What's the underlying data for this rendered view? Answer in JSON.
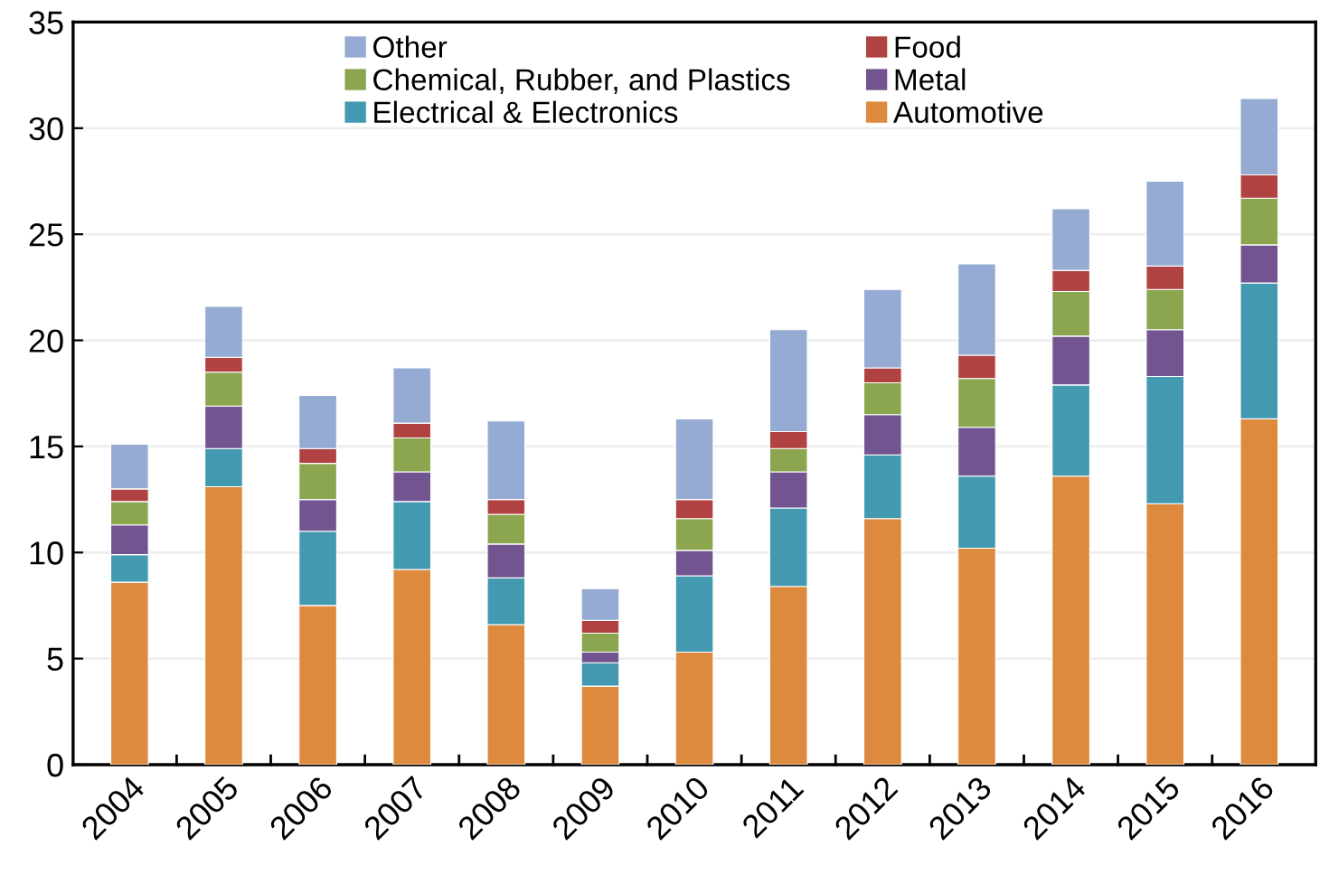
{
  "chart_data": {
    "type": "bar",
    "stacked": true,
    "categories": [
      "2004",
      "2005",
      "2006",
      "2007",
      "2008",
      "2009",
      "2010",
      "2011",
      "2012",
      "2013",
      "2014",
      "2015",
      "2016"
    ],
    "series": [
      {
        "name": "Automotive",
        "color": "#dd8a3e",
        "values": [
          8.6,
          13.1,
          7.5,
          9.2,
          6.6,
          3.7,
          5.3,
          8.4,
          11.6,
          10.2,
          13.6,
          12.3,
          16.3
        ]
      },
      {
        "name": "Electrical & Electronics",
        "color": "#4299b0",
        "values": [
          1.3,
          1.8,
          3.5,
          3.2,
          2.2,
          1.1,
          3.6,
          3.7,
          3.0,
          3.4,
          4.3,
          6.0,
          6.4
        ]
      },
      {
        "name": "Metal",
        "color": "#725590",
        "values": [
          1.4,
          2.0,
          1.5,
          1.4,
          1.6,
          0.5,
          1.2,
          1.7,
          1.9,
          2.3,
          2.3,
          2.2,
          1.8
        ]
      },
      {
        "name": "Chemical, Rubber, and Plastics",
        "color": "#8ba64f",
        "values": [
          1.1,
          1.6,
          1.7,
          1.6,
          1.4,
          0.9,
          1.5,
          1.1,
          1.5,
          2.3,
          2.1,
          1.9,
          2.2
        ]
      },
      {
        "name": "Food",
        "color": "#b04341",
        "values": [
          0.6,
          0.7,
          0.7,
          0.7,
          0.7,
          0.6,
          0.9,
          0.8,
          0.7,
          1.1,
          1.0,
          1.1,
          1.1
        ]
      },
      {
        "name": "Other",
        "color": "#95abd3",
        "values": [
          2.1,
          2.4,
          2.5,
          2.6,
          3.7,
          1.5,
          3.8,
          4.8,
          3.7,
          4.3,
          2.9,
          4.0,
          3.6
        ]
      }
    ],
    "ylim": [
      0,
      35
    ],
    "yticks": [
      0,
      5,
      10,
      15,
      20,
      25,
      30,
      35
    ],
    "grid": "y",
    "legend": "top"
  }
}
